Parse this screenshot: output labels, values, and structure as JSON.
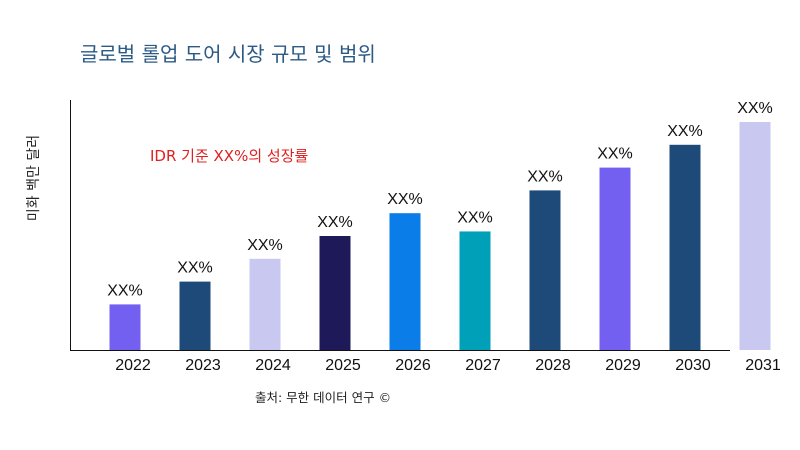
{
  "chart_data": {
    "type": "bar",
    "title": "글로벌 롤업 도어 시장 규모 및 범위",
    "ylabel": "미화 백만 달러",
    "xlabel": "",
    "annotation": "IDR 기준 XX%의 성장률",
    "source": "출처: 무한 데이터 연구 ©",
    "categories": [
      "2022",
      "2023",
      "2024",
      "2025",
      "2026",
      "2027",
      "2028",
      "2029",
      "2030",
      "2031"
    ],
    "values": [
      0.2,
      0.3,
      0.4,
      0.5,
      0.6,
      0.52,
      0.7,
      0.8,
      0.9,
      1.0
    ],
    "data_labels": [
      "XX%",
      "XX%",
      "XX%",
      "XX%",
      "XX%",
      "XX%",
      "XX%",
      "XX%",
      "XX%",
      "XX%"
    ],
    "colors": [
      "#7360f0",
      "#1e4a7a",
      "#c8c8f0",
      "#1e1a5a",
      "#0a7de8",
      "#00a0b8",
      "#1e4a7a",
      "#7360f0",
      "#1e4a7a",
      "#c8c8f0"
    ],
    "ylim": [
      0,
      1.1
    ],
    "grid": false,
    "legend": "none"
  }
}
